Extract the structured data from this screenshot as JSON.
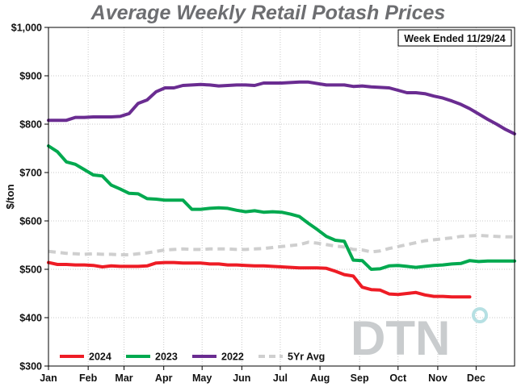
{
  "chart_data": {
    "type": "line",
    "title": "Average Weekly Retail Potash Prices",
    "ylabel": "$/ton",
    "xlabel": "",
    "annotation": "Week Ended 11/29/24",
    "logo": "DTN",
    "ylim": [
      300,
      1000
    ],
    "xlim": [
      0,
      52
    ],
    "y_ticks": [
      300,
      400,
      500,
      600,
      700,
      800,
      900,
      1000
    ],
    "y_tick_labels": [
      "$300",
      "$400",
      "$500",
      "$600",
      "$700",
      "$800",
      "$900",
      "$1,000"
    ],
    "x_ticks": [
      0,
      4.43,
      8.43,
      12.86,
      17.14,
      21.57,
      25.86,
      30.29,
      34.71,
      39,
      43.43,
      47.71
    ],
    "x_tick_labels": [
      "Jan",
      "Feb",
      "Mar",
      "Apr",
      "May",
      "Jun",
      "Jul",
      "Aug",
      "Sep",
      "Oct",
      "Nov",
      "Dec"
    ],
    "grid": true,
    "legend_position": "bottom-left",
    "series": [
      {
        "name": "2024",
        "color": "#ee1c25",
        "dashed": false,
        "x": [
          0,
          1,
          2,
          3,
          4,
          5,
          6,
          7,
          8,
          9,
          10,
          11,
          12,
          13,
          14,
          15,
          16,
          17,
          18,
          19,
          20,
          21,
          22,
          23,
          24,
          25,
          26,
          27,
          28,
          29,
          30,
          31,
          32,
          33,
          34,
          35,
          36,
          37,
          38,
          39,
          40,
          41,
          42,
          43,
          44,
          45,
          46,
          47
        ],
        "y": [
          514,
          510,
          510,
          509,
          509,
          508,
          505,
          507,
          506,
          506,
          506,
          507,
          513,
          514,
          514,
          513,
          513,
          513,
          511,
          511,
          509,
          509,
          508,
          507,
          507,
          506,
          505,
          504,
          503,
          503,
          503,
          502,
          496,
          489,
          486,
          463,
          458,
          457,
          449,
          448,
          450,
          452,
          447,
          444,
          444,
          443,
          443,
          443
        ]
      },
      {
        "name": "2023",
        "color": "#00a94f",
        "dashed": false,
        "x": [
          0,
          1,
          2,
          3,
          4,
          5,
          6,
          7,
          8,
          9,
          10,
          11,
          12,
          13,
          14,
          15,
          16,
          17,
          18,
          19,
          20,
          21,
          22,
          23,
          24,
          25,
          26,
          27,
          28,
          29,
          30,
          31,
          32,
          33,
          34,
          35,
          36,
          37,
          38,
          39,
          40,
          41,
          42,
          43,
          44,
          45,
          46,
          47,
          48,
          49,
          50,
          51,
          52
        ],
        "y": [
          755,
          743,
          722,
          717,
          706,
          695,
          693,
          674,
          666,
          657,
          656,
          646,
          645,
          643,
          643,
          643,
          624,
          624,
          626,
          627,
          626,
          622,
          619,
          621,
          618,
          619,
          618,
          614,
          609,
          595,
          582,
          568,
          560,
          558,
          519,
          518,
          500,
          501,
          507,
          508,
          506,
          504,
          506,
          508,
          509,
          511,
          512,
          518,
          516,
          517,
          517,
          517,
          517
        ]
      },
      {
        "name": "2022",
        "color": "#6a2c91",
        "dashed": false,
        "x": [
          0,
          1,
          2,
          3,
          4,
          5,
          6,
          7,
          8,
          9,
          10,
          11,
          12,
          13,
          14,
          15,
          16,
          17,
          18,
          19,
          20,
          21,
          22,
          23,
          24,
          25,
          26,
          27,
          28,
          29,
          30,
          31,
          32,
          33,
          34,
          35,
          36,
          37,
          38,
          39,
          40,
          41,
          42,
          43,
          44,
          45,
          46,
          47,
          48,
          49,
          50,
          51,
          52
        ],
        "y": [
          808,
          808,
          808,
          814,
          814,
          815,
          815,
          815,
          816,
          822,
          843,
          850,
          867,
          875,
          875,
          880,
          881,
          882,
          881,
          879,
          880,
          881,
          881,
          880,
          885,
          885,
          885,
          886,
          887,
          887,
          884,
          881,
          881,
          881,
          878,
          879,
          877,
          876,
          875,
          870,
          865,
          865,
          863,
          858,
          854,
          848,
          841,
          832,
          821,
          810,
          800,
          789,
          780
        ]
      },
      {
        "name": "5Yr Avg",
        "color": "#cfcfcf",
        "dashed": true,
        "x": [
          0,
          1,
          2,
          3,
          4,
          5,
          6,
          7,
          8,
          9,
          10,
          11,
          12,
          13,
          14,
          15,
          16,
          17,
          18,
          19,
          20,
          21,
          22,
          23,
          24,
          25,
          26,
          27,
          28,
          29,
          30,
          31,
          32,
          33,
          34,
          35,
          36,
          37,
          38,
          39,
          40,
          41,
          42,
          43,
          44,
          45,
          46,
          47,
          48,
          49,
          50,
          51,
          52
        ],
        "y": [
          537,
          535,
          533,
          532,
          531,
          532,
          531,
          531,
          530,
          530,
          532,
          534,
          537,
          540,
          541,
          542,
          541,
          541,
          542,
          542,
          542,
          541,
          541,
          542,
          543,
          545,
          547,
          549,
          551,
          556,
          554,
          551,
          548,
          546,
          541,
          540,
          536,
          538,
          543,
          547,
          551,
          555,
          559,
          561,
          563,
          565,
          568,
          569,
          570,
          569,
          568,
          567,
          567
        ]
      }
    ]
  }
}
